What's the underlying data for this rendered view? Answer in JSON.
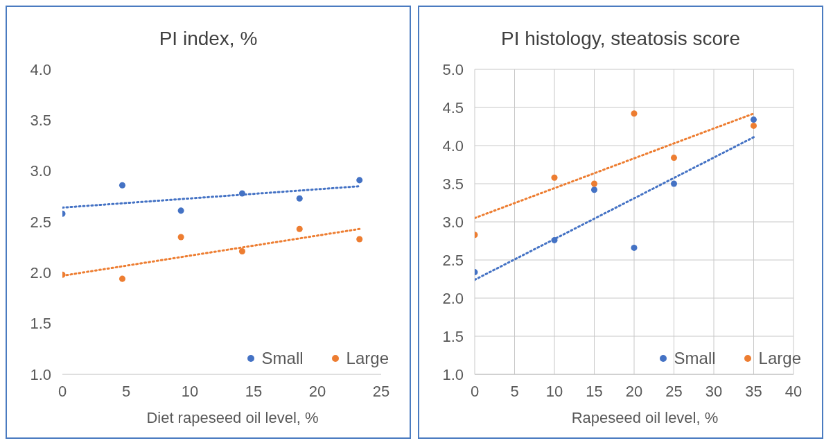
{
  "chart_data": [
    {
      "type": "scatter",
      "title": "PI index, %",
      "xlabel": "Diet rapeseed oil level, %",
      "xlim": [
        0,
        25
      ],
      "xticks": [
        0,
        5,
        10,
        15,
        20,
        25
      ],
      "ylim": [
        1.0,
        4.0
      ],
      "yticks": [
        {
          "value": 1,
          "label": "1.0"
        },
        1.5,
        {
          "value": 2,
          "label": "2.0"
        },
        2.5,
        {
          "value": 3,
          "label": "3.0"
        },
        3.5,
        {
          "value": 4,
          "label": "4.0"
        }
      ],
      "grid": false,
      "legend": "bottom right",
      "series": [
        {
          "name": "Small",
          "marker": "circle",
          "color": "#4472c4",
          "x": [
            0,
            4.7,
            9.3,
            14.1,
            18.6,
            23.3
          ],
          "values": [
            2.58,
            2.86,
            2.61,
            2.78,
            2.73,
            2.91
          ]
        },
        {
          "name": "Large",
          "marker": "circle",
          "color": "#ed7d31",
          "x": [
            0,
            4.7,
            9.3,
            14.1,
            18.6,
            23.3
          ],
          "values": [
            1.98,
            1.94,
            2.35,
            2.21,
            2.43,
            2.33
          ]
        },
        {
          "type": "line",
          "marker": "none",
          "color": "#4472c4",
          "line_style": "dotted",
          "x": [
            0,
            23.3
          ],
          "values": [
            2.64,
            2.85
          ]
        },
        {
          "type": "line",
          "marker": "none",
          "color": "#ed7d31",
          "line_style": "dotted",
          "x": [
            0,
            23.3
          ],
          "values": [
            1.97,
            2.43
          ]
        }
      ]
    },
    {
      "type": "scatter",
      "title": "PI histology, steatosis score",
      "xlabel": "Rapeseed oil level, %",
      "xlim": [
        0,
        40
      ],
      "xticks": [
        0,
        5,
        10,
        15,
        20,
        25,
        30,
        35,
        40
      ],
      "ylim": [
        1.0,
        5.0
      ],
      "yticks": [
        {
          "value": 1,
          "label": "1.0"
        },
        1.5,
        {
          "value": 2,
          "label": "2.0"
        },
        2.5,
        {
          "value": 3,
          "label": "3.0"
        },
        3.5,
        {
          "value": 4,
          "label": "4.0"
        },
        4.5,
        {
          "value": 5,
          "label": "5.0"
        }
      ],
      "grid": true,
      "legend": "bottom right",
      "series": [
        {
          "name": "Small",
          "marker": "circle",
          "color": "#4472c4",
          "x": [
            0,
            10,
            15,
            20,
            25,
            35
          ],
          "values": [
            2.34,
            2.76,
            3.42,
            2.66,
            3.5,
            4.34
          ]
        },
        {
          "name": "Large",
          "marker": "circle",
          "color": "#ed7d31",
          "x": [
            0,
            10,
            15,
            20,
            25,
            35
          ],
          "values": [
            2.83,
            3.58,
            3.5,
            4.42,
            3.84,
            4.26
          ]
        },
        {
          "type": "line",
          "marker": "none",
          "color": "#4472c4",
          "line_style": "dotted",
          "x": [
            0,
            35
          ],
          "values": [
            2.24,
            4.11
          ]
        },
        {
          "type": "line",
          "marker": "none",
          "color": "#ed7d31",
          "line_style": "dotted",
          "x": [
            0,
            35
          ],
          "values": [
            3.05,
            4.42
          ]
        }
      ]
    }
  ]
}
